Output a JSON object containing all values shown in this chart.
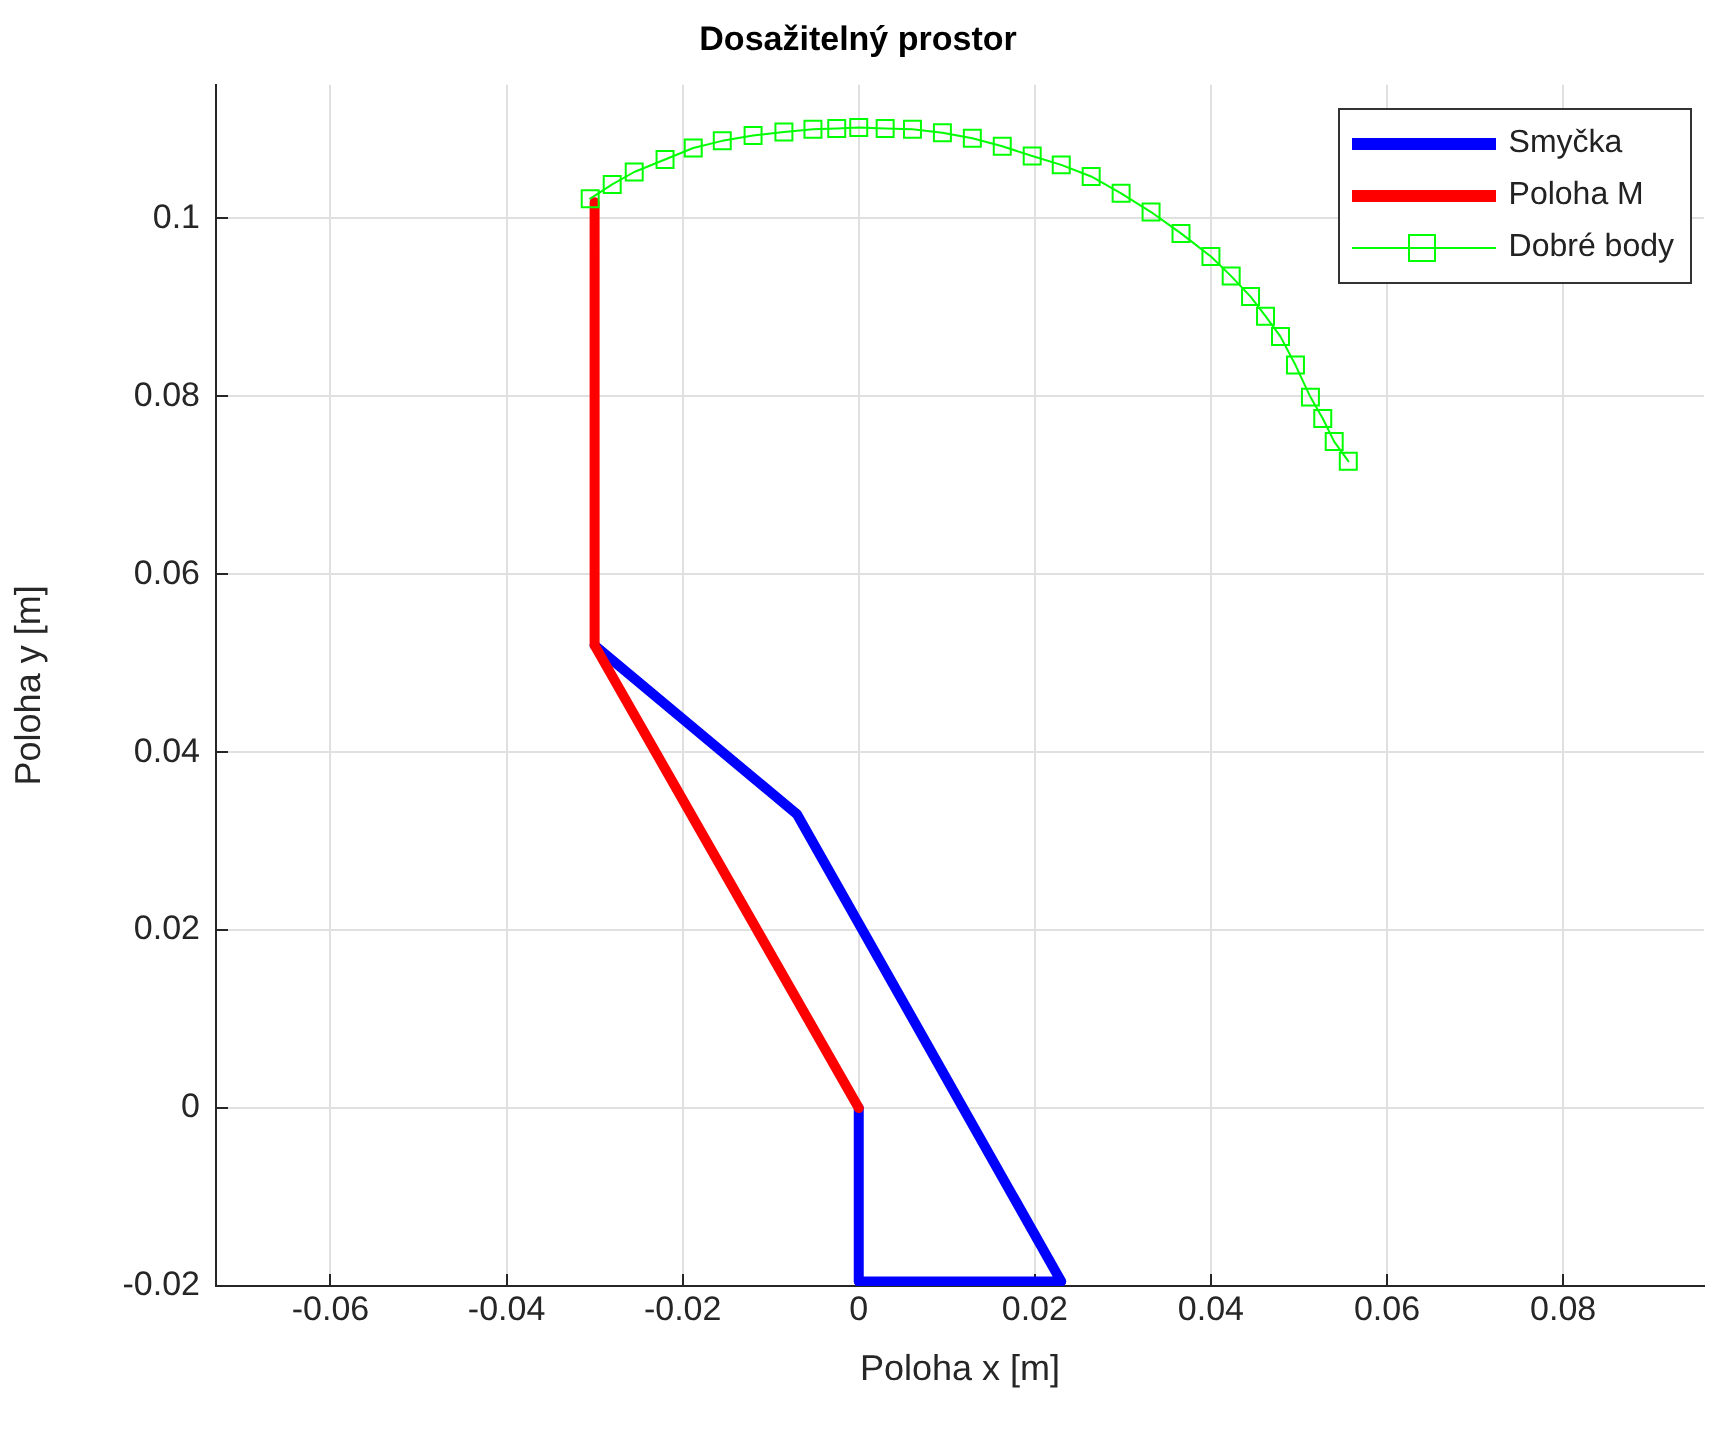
{
  "chart_data": {
    "type": "line",
    "title": "Dosažitelný prostor",
    "xlabel": "Poloha x [m]",
    "ylabel": "Poloha y [m]",
    "xlim": [
      -0.073,
      0.096
    ],
    "xticks": [
      -0.06,
      -0.04,
      -0.02,
      0,
      0.02,
      0.04,
      0.06,
      0.08
    ],
    "ylim": [
      -0.02,
      0.115
    ],
    "yticks": [
      -0.02,
      0,
      0.02,
      0.04,
      0.06,
      0.08,
      0.1
    ],
    "grid": true,
    "legend": "top right",
    "series": [
      {
        "name": "Smyčka",
        "color": "#0000ff",
        "marker": "none",
        "x": [
          0,
          0,
          0.023,
          -0.007,
          -0.03
        ],
        "values": [
          0,
          -0.0195,
          -0.0195,
          0.033,
          0.052
        ]
      },
      {
        "name": "Poloha M",
        "color": "#ff0000",
        "marker": "none",
        "x": [
          0,
          -0.03,
          -0.03
        ],
        "values": [
          0,
          0.052,
          0.1018
        ]
      },
      {
        "name": "Dobré body",
        "color": "#00ff00",
        "marker": "square",
        "x": [
          -0.0305,
          -0.028,
          -0.0255,
          -0.022,
          -0.0188,
          -0.0155,
          -0.012,
          -0.0085,
          -0.0052,
          -0.0025,
          0,
          0.003,
          0.0061,
          0.0095,
          0.0129,
          0.0163,
          0.0197,
          0.023,
          0.0264,
          0.0298,
          0.0332,
          0.0366,
          0.04,
          0.0423,
          0.0445,
          0.0462,
          0.0479,
          0.0496,
          0.0513,
          0.0527,
          0.054,
          0.0556
        ],
        "values": [
          0.1022,
          0.1038,
          0.1052,
          0.1066,
          0.1079,
          0.1087,
          0.1093,
          0.1097,
          0.11,
          0.1101,
          0.1102,
          0.1101,
          0.11,
          0.1096,
          0.109,
          0.1081,
          0.107,
          0.106,
          0.1047,
          0.1028,
          0.1007,
          0.0983,
          0.0957,
          0.0935,
          0.0912,
          0.089,
          0.0867,
          0.0835,
          0.0799,
          0.0775,
          0.0749,
          0.0727
        ]
      }
    ]
  }
}
